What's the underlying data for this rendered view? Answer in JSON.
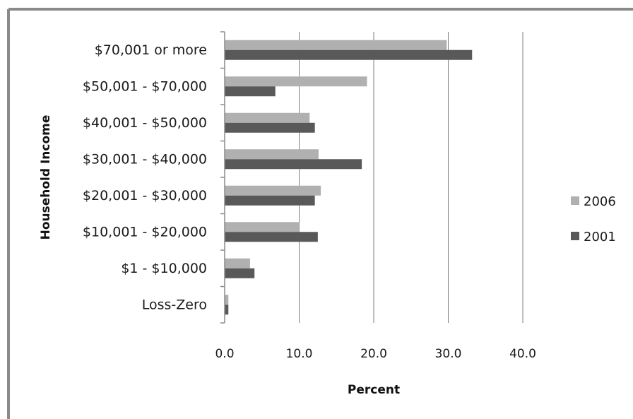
{
  "chart_data": {
    "type": "bar",
    "orientation": "horizontal",
    "categories": [
      "Loss-Zero",
      "$1 - $10,000",
      "$10,001 - $20,000",
      "$20,001 - $30,000",
      "$30,001 - $40,000",
      "$40,001 - $50,000",
      "$50,001 - $70,000",
      "$70,001 or more"
    ],
    "series": [
      {
        "name": "2006",
        "values": [
          0.5,
          3.4,
          10.0,
          12.9,
          12.6,
          11.4,
          19.1,
          29.8
        ],
        "color": "#b0b0b0"
      },
      {
        "name": "2001",
        "values": [
          0.5,
          4.0,
          12.5,
          12.1,
          18.4,
          12.1,
          6.8,
          33.2
        ],
        "color": "#595959"
      }
    ],
    "xlim": [
      0,
      40
    ],
    "xticks": [
      "0.0",
      "10.0",
      "20.0",
      "30.0",
      "40.0"
    ],
    "xlabel": "Percent",
    "ylabel": "Household Income",
    "grid": "vertical",
    "legend": "right"
  }
}
